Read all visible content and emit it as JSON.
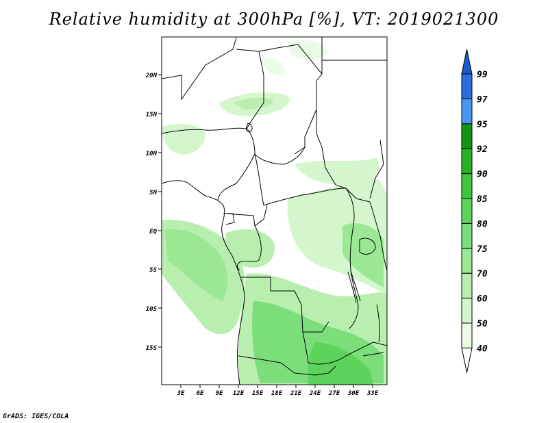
{
  "title": "Relative humidity at 300hPa [%], VT: 2019021300",
  "credit": "GrADS: IGES/COLA",
  "map": {
    "lon_labels": [
      "3E",
      "6E",
      "9E",
      "12E",
      "15E",
      "18E",
      "21E",
      "24E",
      "27E",
      "30E",
      "33E"
    ],
    "lat_labels": [
      "20N",
      "15N",
      "10N",
      "5N",
      "EQ",
      "5S",
      "10S",
      "15S"
    ]
  },
  "colorbar": {
    "labels": [
      "40",
      "50",
      "60",
      "70",
      "75",
      "80",
      "85",
      "90",
      "92",
      "95",
      "97",
      "99"
    ],
    "colors": [
      "#eafbe6",
      "#d4f6cc",
      "#b8efaf",
      "#9be794",
      "#7cde7a",
      "#5cd45c",
      "#3fc63f",
      "#26b026",
      "#149614",
      "#4896f0",
      "#2a6fe0",
      "#1a5bd0"
    ]
  }
}
